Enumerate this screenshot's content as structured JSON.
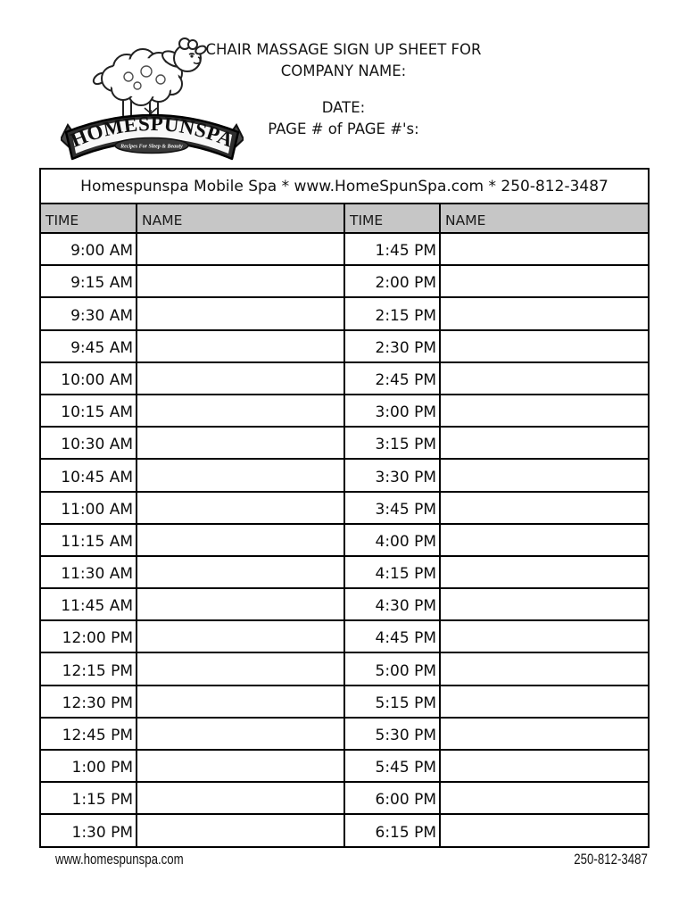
{
  "header": {
    "line1": "CHAIR MASSAGE SIGN UP SHEET FOR",
    "line2": "COMPANY NAME:",
    "date_line": "DATE:",
    "page_line": "PAGE # of PAGE #'s:"
  },
  "logo": {
    "brand": "HOMESPUNSPA",
    "tagline": "Recipes For Sleep & Beauty"
  },
  "table": {
    "banner": "Homespunspa Mobile Spa * www.HomeSpunSpa.com * 250-812-3487",
    "columns": [
      "TIME",
      "NAME",
      "TIME",
      "NAME"
    ],
    "rows": [
      {
        "time1": "9:00 AM",
        "name1": "",
        "time2": "1:45 PM",
        "name2": ""
      },
      {
        "time1": "9:15 AM",
        "name1": "",
        "time2": "2:00 PM",
        "name2": ""
      },
      {
        "time1": "9:30 AM",
        "name1": "",
        "time2": "2:15 PM",
        "name2": ""
      },
      {
        "time1": "9:45 AM",
        "name1": "",
        "time2": "2:30 PM",
        "name2": ""
      },
      {
        "time1": "10:00 AM",
        "name1": "",
        "time2": "2:45 PM",
        "name2": ""
      },
      {
        "time1": "10:15 AM",
        "name1": "",
        "time2": "3:00 PM",
        "name2": ""
      },
      {
        "time1": "10:30 AM",
        "name1": "",
        "time2": "3:15 PM",
        "name2": ""
      },
      {
        "time1": "10:45 AM",
        "name1": "",
        "time2": "3:30 PM",
        "name2": ""
      },
      {
        "time1": "11:00 AM",
        "name1": "",
        "time2": "3:45 PM",
        "name2": ""
      },
      {
        "time1": "11:15 AM",
        "name1": "",
        "time2": "4:00 PM",
        "name2": ""
      },
      {
        "time1": "11:30 AM",
        "name1": "",
        "time2": "4:15 PM",
        "name2": ""
      },
      {
        "time1": "11:45 AM",
        "name1": "",
        "time2": "4:30 PM",
        "name2": ""
      },
      {
        "time1": "12:00 PM",
        "name1": "",
        "time2": "4:45 PM",
        "name2": ""
      },
      {
        "time1": "12:15 PM",
        "name1": "",
        "time2": "5:00 PM",
        "name2": ""
      },
      {
        "time1": "12:30 PM",
        "name1": "",
        "time2": "5:15 PM",
        "name2": ""
      },
      {
        "time1": "12:45 PM",
        "name1": "",
        "time2": "5:30 PM",
        "name2": ""
      },
      {
        "time1": "1:00 PM",
        "name1": "",
        "time2": "5:45 PM",
        "name2": ""
      },
      {
        "time1": "1:15 PM",
        "name1": "",
        "time2": "6:00 PM",
        "name2": ""
      },
      {
        "time1": "1:30 PM",
        "name1": "",
        "time2": "6:15 PM",
        "name2": ""
      }
    ]
  },
  "footer": {
    "website": "www.homespunspa.com",
    "phone": "250-812-3487"
  },
  "colors": {
    "header_row_gray": "#c6c6c6",
    "border": "#000000"
  }
}
